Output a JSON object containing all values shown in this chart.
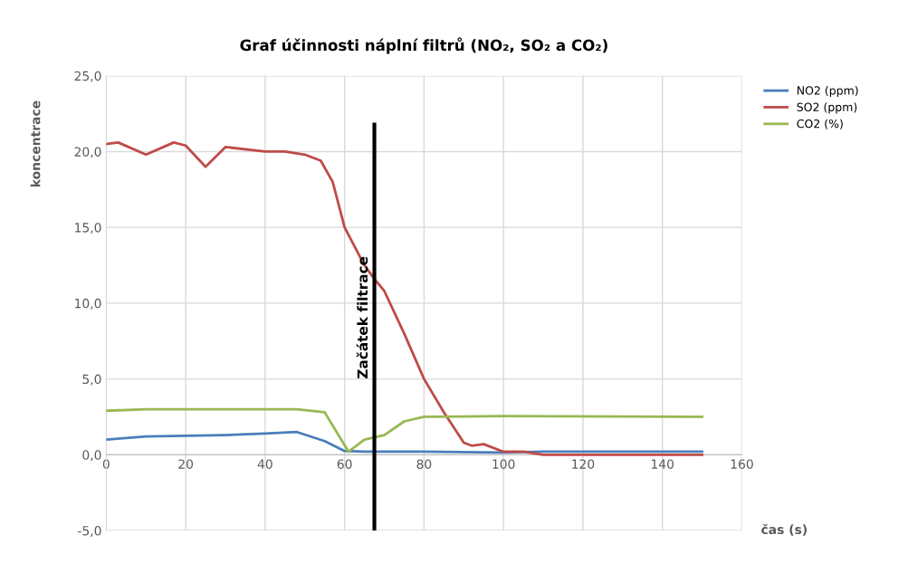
{
  "chart_data": {
    "type": "line",
    "title": "Graf účinnosti náplní filtrů (NO₂, SO₂ a CO₂)",
    "xlabel": "čas (s)",
    "ylabel": "koncentrace",
    "series": [
      {
        "name": "NO2 (ppm)",
        "color": "#4a7ebb",
        "x": [
          0,
          10,
          20,
          30,
          40,
          48,
          55,
          60,
          65,
          80,
          100,
          110,
          150
        ],
        "values": [
          1.0,
          1.2,
          1.25,
          1.3,
          1.4,
          1.5,
          0.9,
          0.25,
          0.2,
          0.2,
          0.15,
          0.2,
          0.2
        ]
      },
      {
        "name": "SO2 (ppm)",
        "color": "#be4b48",
        "x": [
          0,
          3,
          10,
          17,
          20,
          25,
          30,
          40,
          45,
          50,
          54,
          57,
          60,
          65,
          67.5,
          70,
          75,
          80,
          85,
          90,
          92,
          95,
          100,
          105,
          110,
          150
        ],
        "values": [
          20.5,
          20.6,
          19.8,
          20.6,
          20.4,
          19.0,
          20.3,
          20.0,
          20.0,
          19.8,
          19.4,
          18.0,
          15.0,
          12.5,
          11.6,
          10.8,
          8.0,
          5.0,
          2.8,
          0.8,
          0.6,
          0.7,
          0.2,
          0.2,
          0.0,
          0.0
        ]
      },
      {
        "name": "CO2 (%)",
        "color": "#98b954",
        "x": [
          0,
          10,
          48,
          55,
          58,
          61,
          65,
          70,
          75,
          80,
          100,
          150
        ],
        "values": [
          2.9,
          3.0,
          3.0,
          2.8,
          1.5,
          0.2,
          1.0,
          1.3,
          2.2,
          2.5,
          2.55,
          2.5
        ]
      }
    ],
    "xlim": [
      0,
      160
    ],
    "xticks": [
      0,
      20,
      40,
      60,
      80,
      100,
      120,
      140,
      160
    ],
    "ylim": [
      -5,
      25
    ],
    "yticks": [
      {
        "value": -5,
        "label": "-5,0"
      },
      {
        "value": 0,
        "label": "0,0"
      },
      {
        "value": 5,
        "label": "5,0"
      },
      {
        "value": 10,
        "label": "10,0"
      },
      {
        "value": 15,
        "label": "15,0"
      },
      {
        "value": 20,
        "label": "20,0"
      },
      {
        "value": 25,
        "label": "25,0"
      }
    ],
    "ref_lines": [
      {
        "axis": "x",
        "value": 67.5,
        "label": "Začátek filtrace",
        "color": "#000000"
      }
    ],
    "grid": true,
    "legend": "top right",
    "marker": "none",
    "line_style": "solid"
  }
}
